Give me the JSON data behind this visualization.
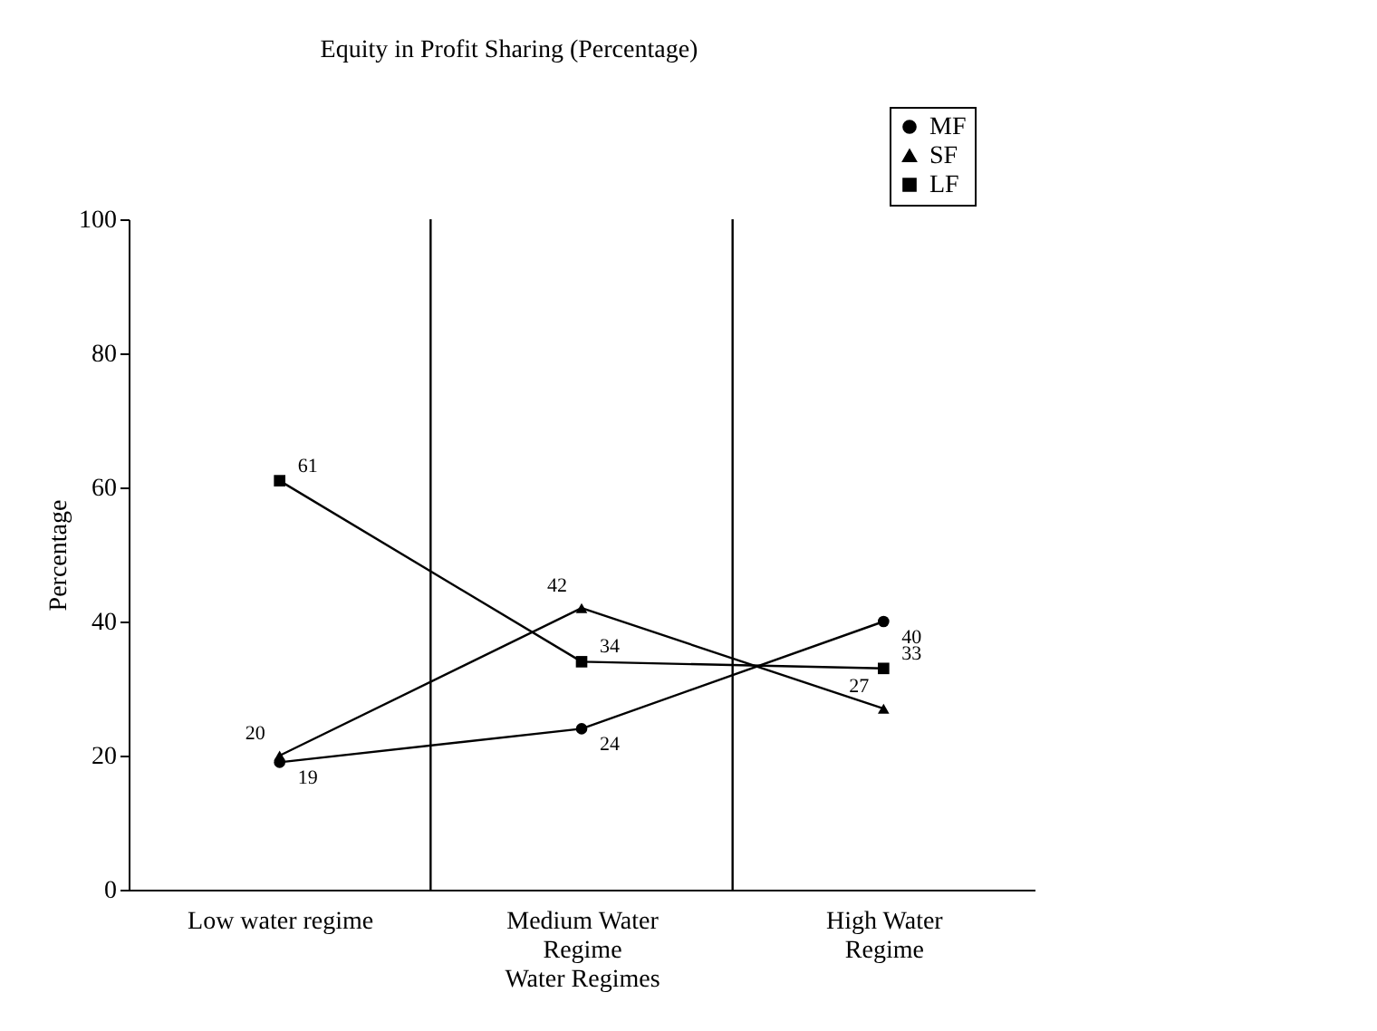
{
  "chart_data": {
    "type": "line",
    "title": "Equity in Profit Sharing (Percentage)",
    "xlabel": "Water Regimes",
    "ylabel": "Percentage",
    "categories": [
      "Low water regime",
      "Medium Water Regime",
      "High Water Regime"
    ],
    "series": [
      {
        "name": "MF",
        "color": "#000000",
        "marker": "circle",
        "values": [
          19,
          24,
          40
        ]
      },
      {
        "name": "SF",
        "color": "#000000",
        "marker": "triangle",
        "values": [
          20,
          42,
          27
        ]
      },
      {
        "name": "LF",
        "color": "#000000",
        "marker": "square",
        "values": [
          61,
          34,
          33
        ]
      }
    ],
    "ylim": [
      0,
      100
    ],
    "yticks": [
      0,
      20,
      40,
      60,
      80,
      100
    ],
    "grid": "x",
    "legend": "top right",
    "data_labels": true
  }
}
